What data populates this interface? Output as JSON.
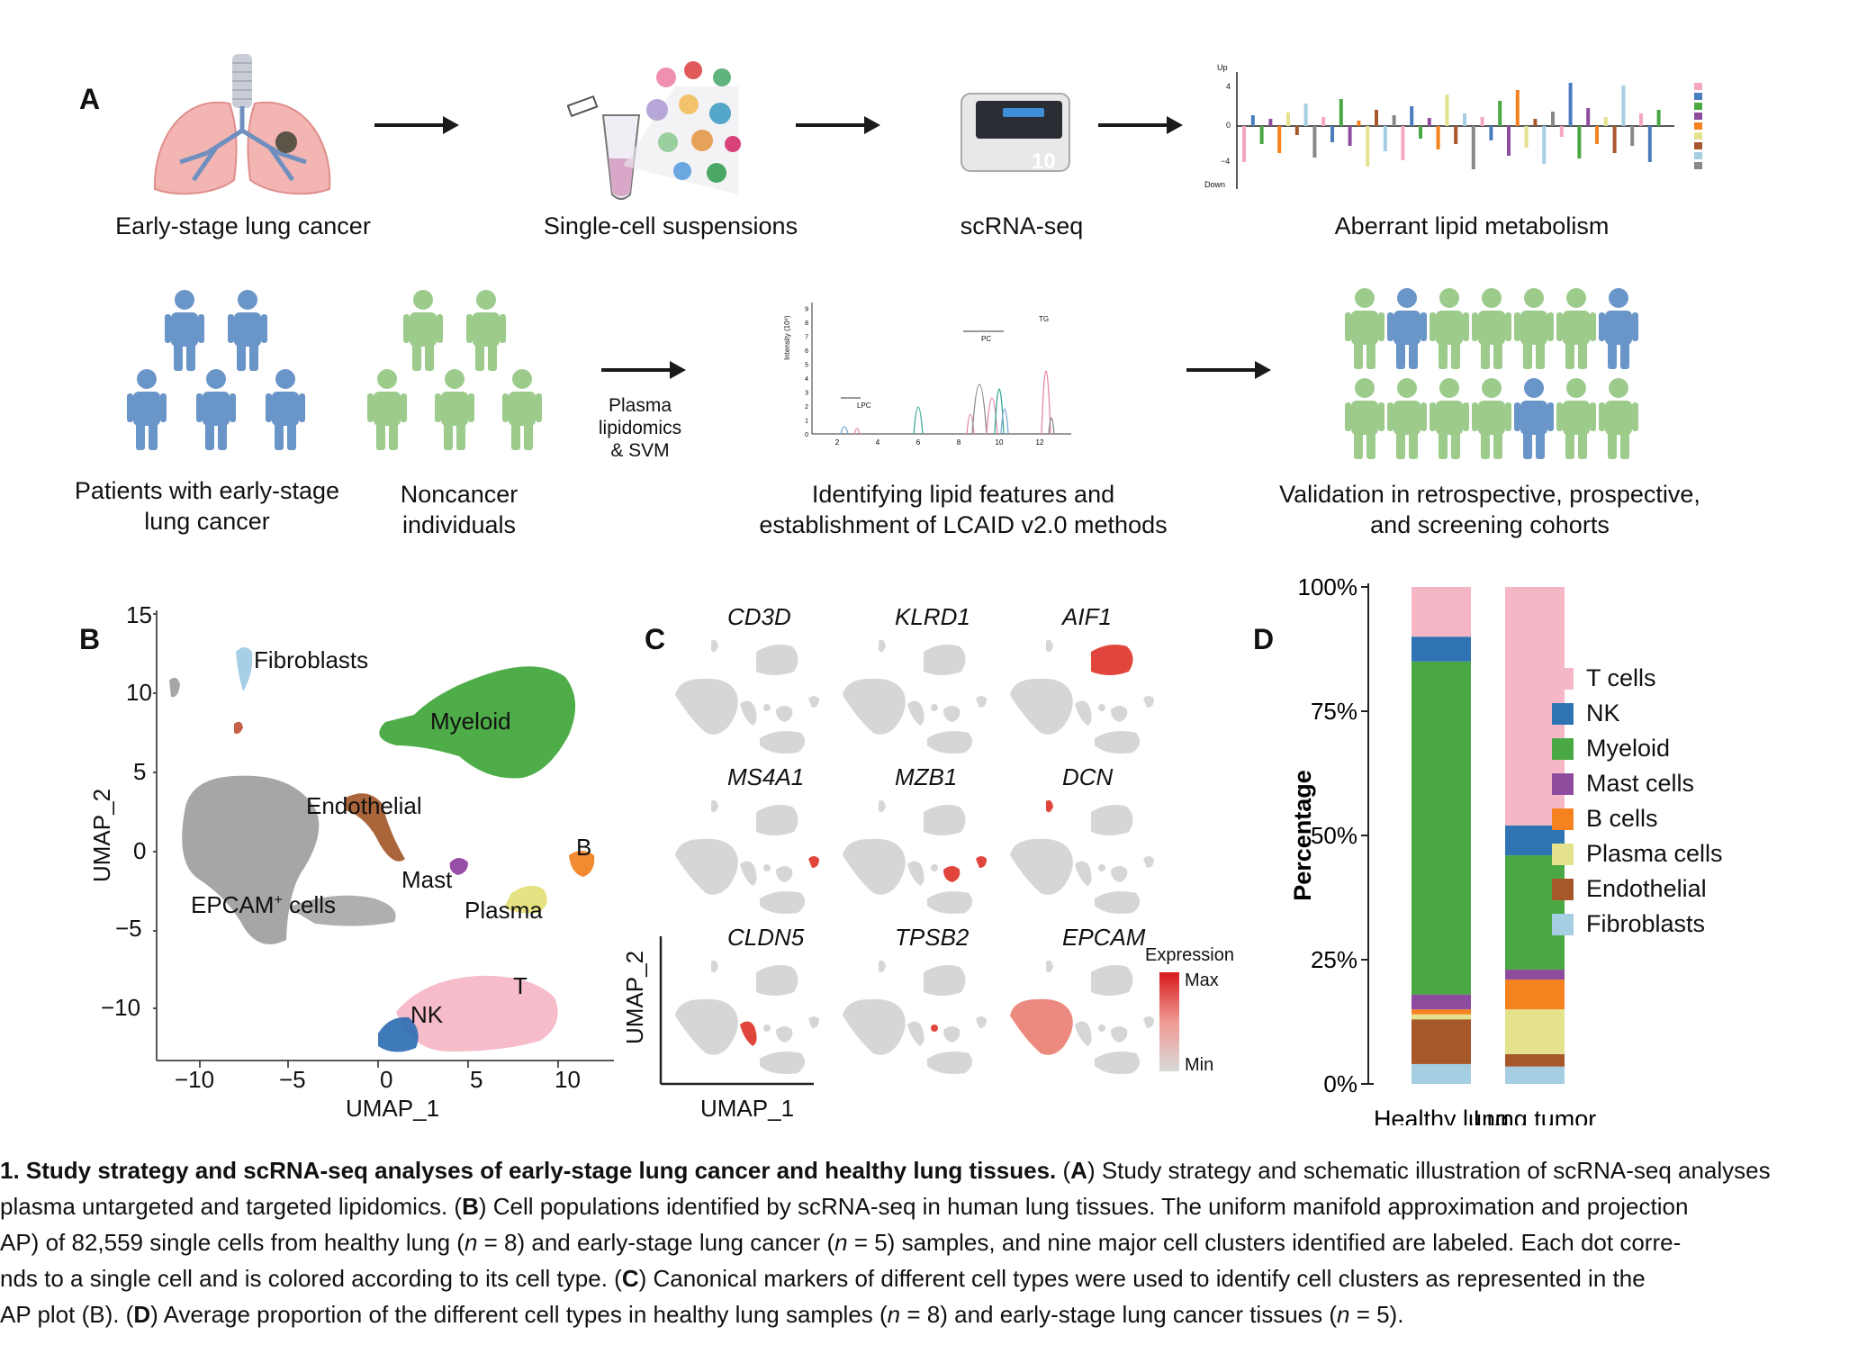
{
  "panel_labels": {
    "a": "A",
    "b": "B",
    "c": "C",
    "d": "D"
  },
  "panel_a": {
    "row1_steps": [
      "Early-stage lung cancer",
      "Single-cell suspensions",
      "scRNA-seq",
      "Aberrant lipid metabolism"
    ],
    "mini_bar_axis": {
      "up": "Up",
      "four": "4",
      "zero": "0",
      "minus_four": "−4",
      "down": "Down"
    },
    "instrument_badge": "10",
    "row2": {
      "patients": "Patients with early-stage lung cancer",
      "noncancer": "Noncancer individuals",
      "arrow_label": "Plasma lipidomics & SVM",
      "features": "Identifying lipid features and establishment of LCAID v2.0 methods",
      "validation": "Validation  in retrospective, prospective, and screening cohorts"
    },
    "chrom_peaks": {
      "lpc": "LPC",
      "pc": "PC",
      "tg": "TG"
    },
    "chrom_x_ticks": [
      "2",
      "4",
      "6",
      "8",
      "10",
      "12"
    ],
    "chrom_y_ticks": [
      "0",
      "1",
      "2",
      "3",
      "4",
      "5",
      "6",
      "7",
      "8",
      "9"
    ],
    "chrom_ylabel": "Intensity (10⁸)",
    "colors": {
      "patient": "#6a95c8",
      "noncancer": "#9ccb8c",
      "arrow": "#1a1a1a"
    }
  },
  "panel_b": {
    "xlabel": "UMAP_1",
    "ylabel": "UMAP_2",
    "x_ticks": [
      "−10",
      "−5",
      "0",
      "5",
      "10"
    ],
    "y_ticks": [
      "15",
      "10",
      "5",
      "0",
      "−5",
      "−10"
    ],
    "clusters": {
      "fibroblasts": "Fibroblasts",
      "myeloid": "Myeloid",
      "endothelial": "Endothelial",
      "b": "B",
      "mast": "Mast",
      "epcam": "EPCAM",
      "epcam_sup": "+",
      "epcam_tail": " cells",
      "plasma": "Plasma",
      "t": "T",
      "nk": "NK"
    }
  },
  "panel_c": {
    "genes": [
      "CD3D",
      "KLRD1",
      "AIF1",
      "MS4A1",
      "MZB1",
      "DCN",
      "CLDN5",
      "TPSB2",
      "EPCAM"
    ],
    "xlabel": "UMAP_1",
    "ylabel": "UMAP_2",
    "legend_title": "Expression",
    "legend_max": "Max",
    "legend_min": "Min",
    "colors": {
      "max": "#d7191c",
      "min": "#d9d9d9"
    }
  },
  "chart_data": {
    "type": "bar",
    "stacked": true,
    "categories": [
      "Healthy lung",
      "Lung tumor"
    ],
    "ylabel": "Percentage",
    "ylim": [
      0,
      100
    ],
    "y_ticks": [
      "0%",
      "25%",
      "50%",
      "75%",
      "100%"
    ],
    "legend_position": "right",
    "series": [
      {
        "name": "Fibroblasts",
        "color": "#a6cee3",
        "values": [
          4,
          3.5
        ]
      },
      {
        "name": "Endothelial",
        "color": "#a6582b",
        "values": [
          9,
          2.5
        ]
      },
      {
        "name": "Plasma cells",
        "color": "#e4e28c",
        "values": [
          1,
          9
        ]
      },
      {
        "name": "B cells",
        "color": "#f5821f",
        "values": [
          1,
          6
        ]
      },
      {
        "name": "Mast cells",
        "color": "#8e4c9e",
        "values": [
          3,
          2
        ]
      },
      {
        "name": "Myeloid",
        "color": "#4aa844",
        "values": [
          67,
          23
        ]
      },
      {
        "name": "NK",
        "color": "#2f74b2",
        "values": [
          5,
          6
        ]
      },
      {
        "name": "T cells",
        "color": "#f5b6c6",
        "values": [
          10,
          48
        ]
      }
    ],
    "legend_order": [
      "T cells",
      "NK",
      "Myeloid",
      "Mast cells",
      "B cells",
      "Plasma cells",
      "Endothelial",
      "Fibroblasts"
    ]
  },
  "caption": {
    "lead": " 1. ",
    "title": "Study strategy and scRNA-seq analyses of early-stage lung cancer and healthy lung tissues.",
    "a_open": " (",
    "a": "A",
    "a_text": ") Study strategy and schematic illustration of scRNA-seq analyses",
    "line2_pre": " plasma untargeted and targeted lipidomics. (",
    "b": "B",
    "line2_post": ") Cell populations identified by scRNA-seq in human lung tissues. The uniform manifold approximation and projection",
    "line3_a": "AP) of 82,559 single cells from healthy lung (",
    "n": "n",
    "line3_b": " = 8) and early-stage lung cancer (",
    "line3_c": " = 5) samples, and nine major cell clusters identified are labeled. Each dot corre-",
    "line4_pre": "nds to a single cell and is colored according to its cell type. (",
    "c": "C",
    "line4_post": ") Canonical markers of different cell types were used to identify cell clusters as represented in the",
    "line5_pre": "AP plot (B). (",
    "d": "D",
    "line5_a": ") Average proportion of the different cell types in healthy lung samples (",
    "line5_b": " = 8) and early-stage lung cancer tissues (",
    "line5_c": " = 5)."
  }
}
